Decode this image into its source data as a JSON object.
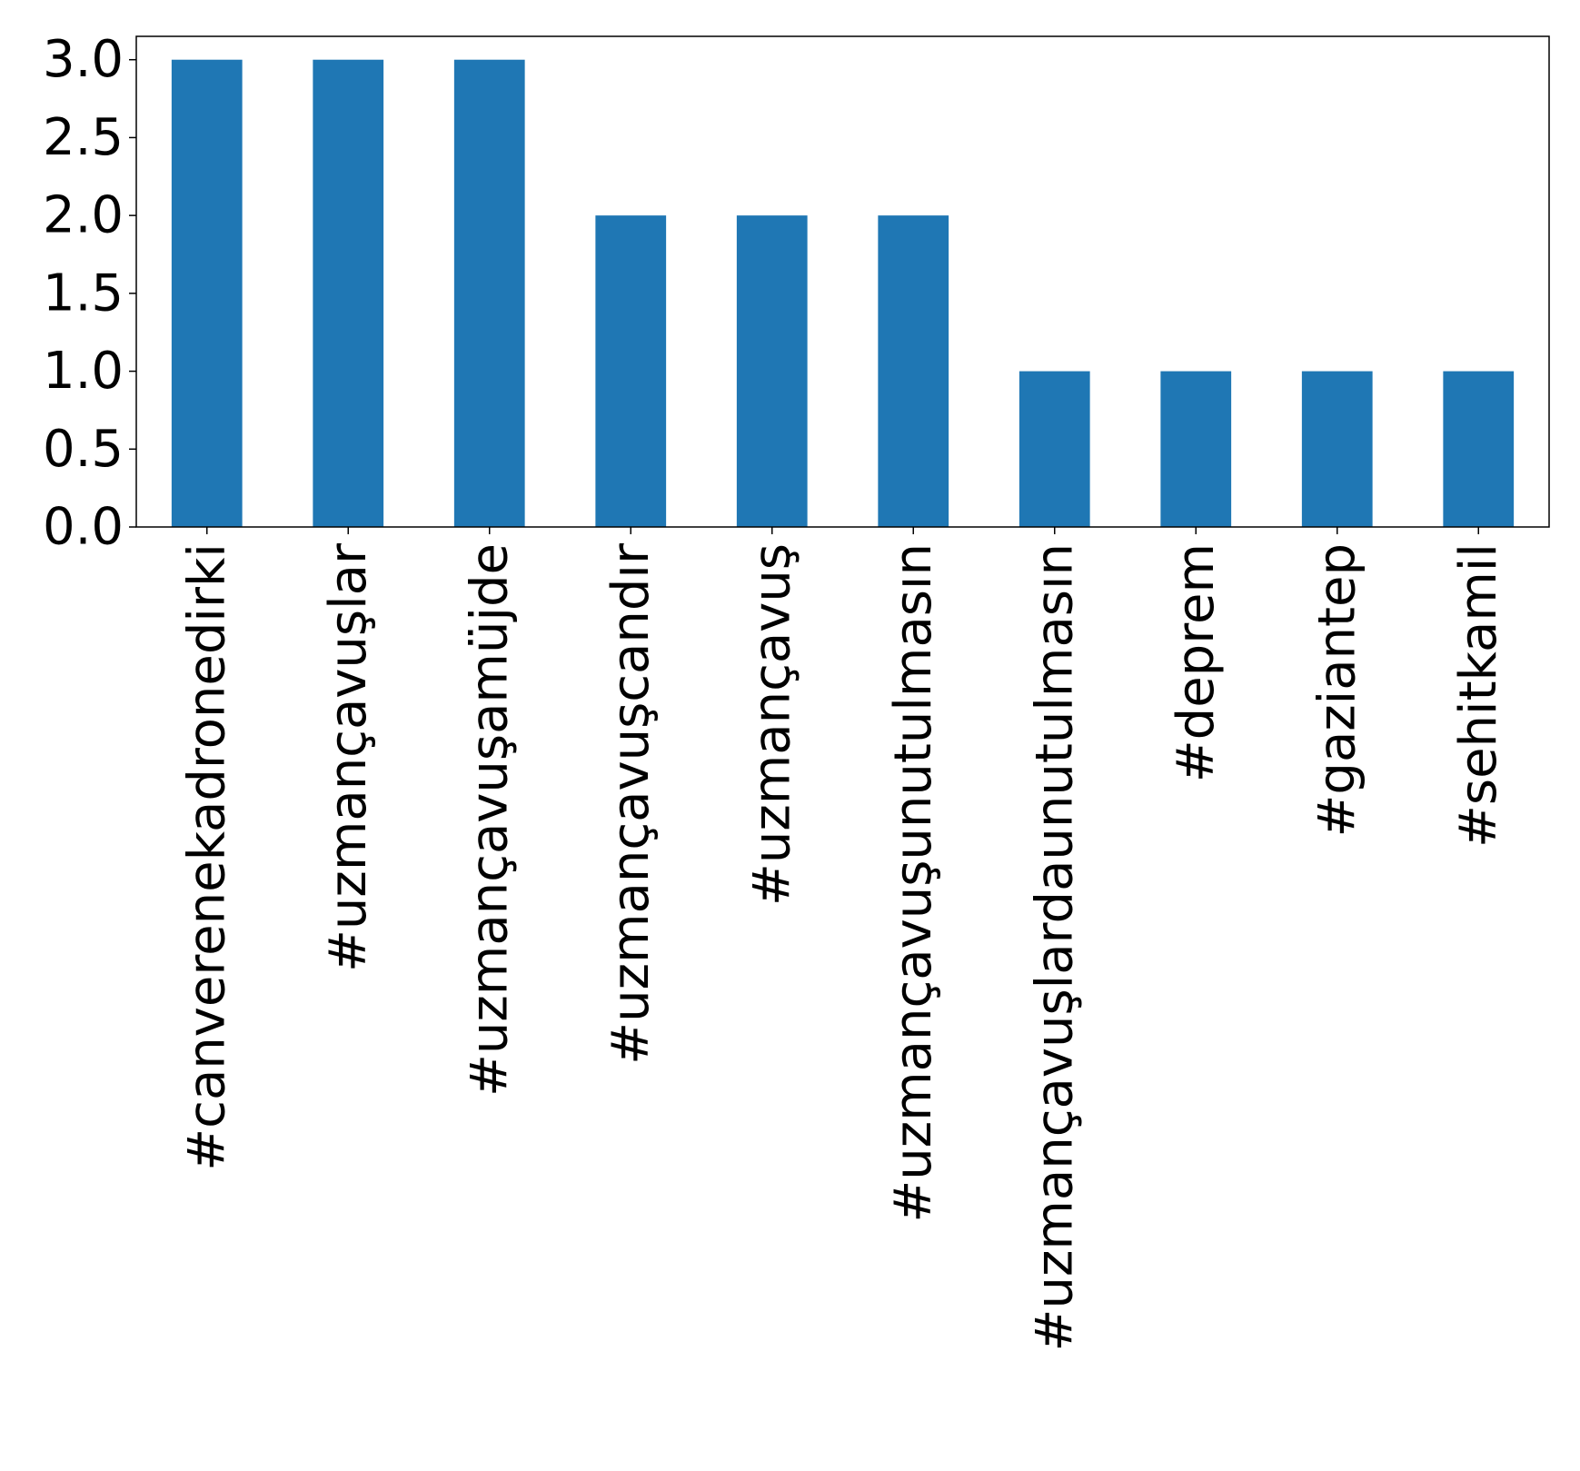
{
  "chart_data": {
    "type": "bar",
    "title": "",
    "xlabel": "",
    "ylabel": "",
    "categories": [
      "#canverenekadronedirki",
      "#uzmançavuşlar",
      "#uzmançavuşamüjde",
      "#uzmançavuşcandır",
      "#uzmançavuş",
      "#uzmançavuşunutulmasın",
      "#uzmançavuşlardaunutulmasın",
      "#deprem",
      "#gaziantep",
      "#sehitkamil"
    ],
    "values": [
      3,
      3,
      3,
      2,
      2,
      2,
      1,
      1,
      1,
      1
    ],
    "ylim": [
      0,
      3.15
    ],
    "yticks": [
      0.0,
      0.5,
      1.0,
      1.5,
      2.0,
      2.5,
      3.0
    ],
    "ytick_labels": [
      "0.0",
      "0.5",
      "1.0",
      "1.5",
      "2.0",
      "2.5",
      "3.0"
    ],
    "grid": false,
    "legend": "none",
    "colors": {
      "bar": "#1f77b4",
      "axis": "#000000",
      "background": "#ffffff"
    }
  }
}
